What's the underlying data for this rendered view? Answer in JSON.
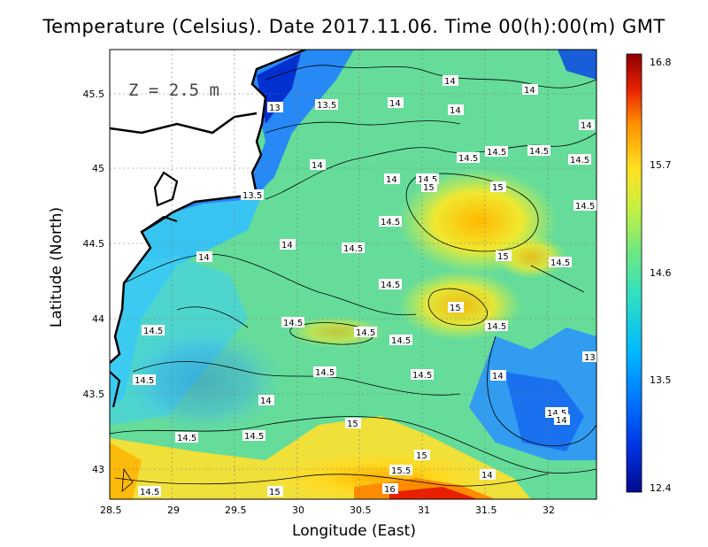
{
  "title": "Temperature (Celsius). Date 2017.11.06. Time 00(h):00(m)  GMT",
  "depth_label": "Z = 2.5 m",
  "x_axis": {
    "label": "Longitude (East)",
    "ticks": [
      "28.5",
      "29",
      "29.5",
      "30",
      "30.5",
      "31",
      "31.5",
      "32"
    ]
  },
  "y_axis": {
    "label": "Latitude (North)",
    "ticks": [
      "43",
      "43.5",
      "44",
      "44.5",
      "45",
      "45.5"
    ]
  },
  "colorbar": {
    "ticks": [
      "12.4",
      "13.5",
      "14.6",
      "15.7",
      "16.8"
    ],
    "colors": [
      "#000a8c",
      "#0040ff",
      "#00b4ff",
      "#30e0d0",
      "#60e890",
      "#b0f050",
      "#ffe020",
      "#ff8c00",
      "#e82000",
      "#8c0000"
    ]
  },
  "contour_labels": [
    "14",
    "14",
    "13.5",
    "14",
    "14",
    "13",
    "14",
    "14.5",
    "14",
    "14.5",
    "14.5",
    "14",
    "14.5",
    "14.5",
    "13.5",
    "14.5",
    "15",
    "15",
    "14.5",
    "14.5",
    "14",
    "14.5",
    "15",
    "14",
    "14.5",
    "14.5",
    "14.5",
    "15",
    "14.5",
    "14.5",
    "14.5",
    "14.5",
    "13",
    "14",
    "14.5",
    "14.5",
    "14",
    "14.5",
    "14",
    "14.5",
    "15",
    "15",
    "15.5",
    "14",
    "14.5",
    "16",
    "15",
    "14.5"
  ]
}
